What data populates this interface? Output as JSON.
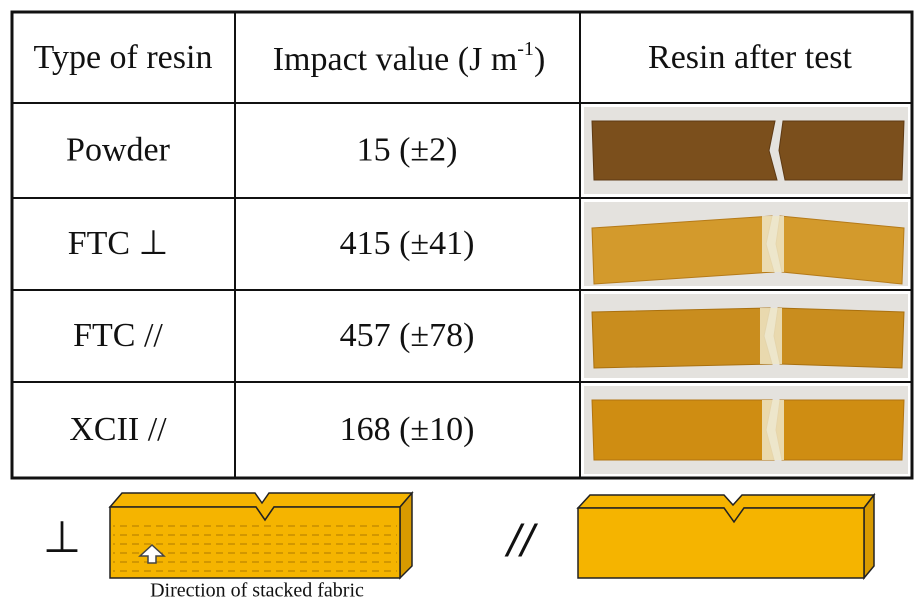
{
  "table": {
    "header": [
      "Type of resin",
      {
        "text": "Impact value (J m",
        "sup": "-1",
        "close": ")"
      },
      "Resin after test"
    ],
    "rows": [
      [
        "Powder",
        "15 (±2)"
      ],
      [
        "FTC ⊥",
        "415 (±41)"
      ],
      [
        "FTC //",
        "457 (±78)"
      ],
      [
        "XCII //",
        "168 (±10)"
      ]
    ]
  },
  "legend": {
    "perpendicular": "⊥",
    "parallel": "//",
    "caption": "Direction of stacked fabric"
  }
}
